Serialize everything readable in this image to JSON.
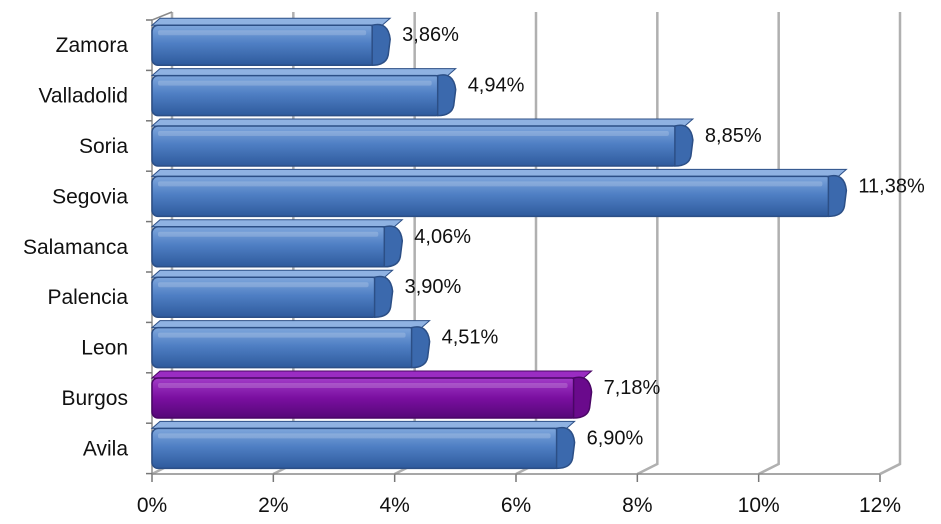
{
  "chart_data": {
    "type": "bar",
    "orientation": "horizontal",
    "categories": [
      "Zamora",
      "Valladolid",
      "Soria",
      "Segovia",
      "Salamanca",
      "Palencia",
      "Leon",
      "Burgos",
      "Avila"
    ],
    "values": [
      3.86,
      4.94,
      8.85,
      11.38,
      4.06,
      3.9,
      4.51,
      7.18,
      6.9
    ],
    "value_labels": [
      "3,86%",
      "4,94%",
      "8,85%",
      "11,38%",
      "4,06%",
      "3,90%",
      "4,51%",
      "7,18%",
      "6,90%"
    ],
    "x_ticks": [
      "0%",
      "2%",
      "4%",
      "6%",
      "8%",
      "10%",
      "12%"
    ],
    "xlim": [
      0,
      12
    ],
    "title": "",
    "xlabel": "",
    "ylabel": "",
    "grid": true,
    "style": "3d",
    "bar_color": "#4a7cc0",
    "highlight_category": "Burgos",
    "highlight_color": "#7a0fa0",
    "grid_color": "#b0b0b0"
  }
}
